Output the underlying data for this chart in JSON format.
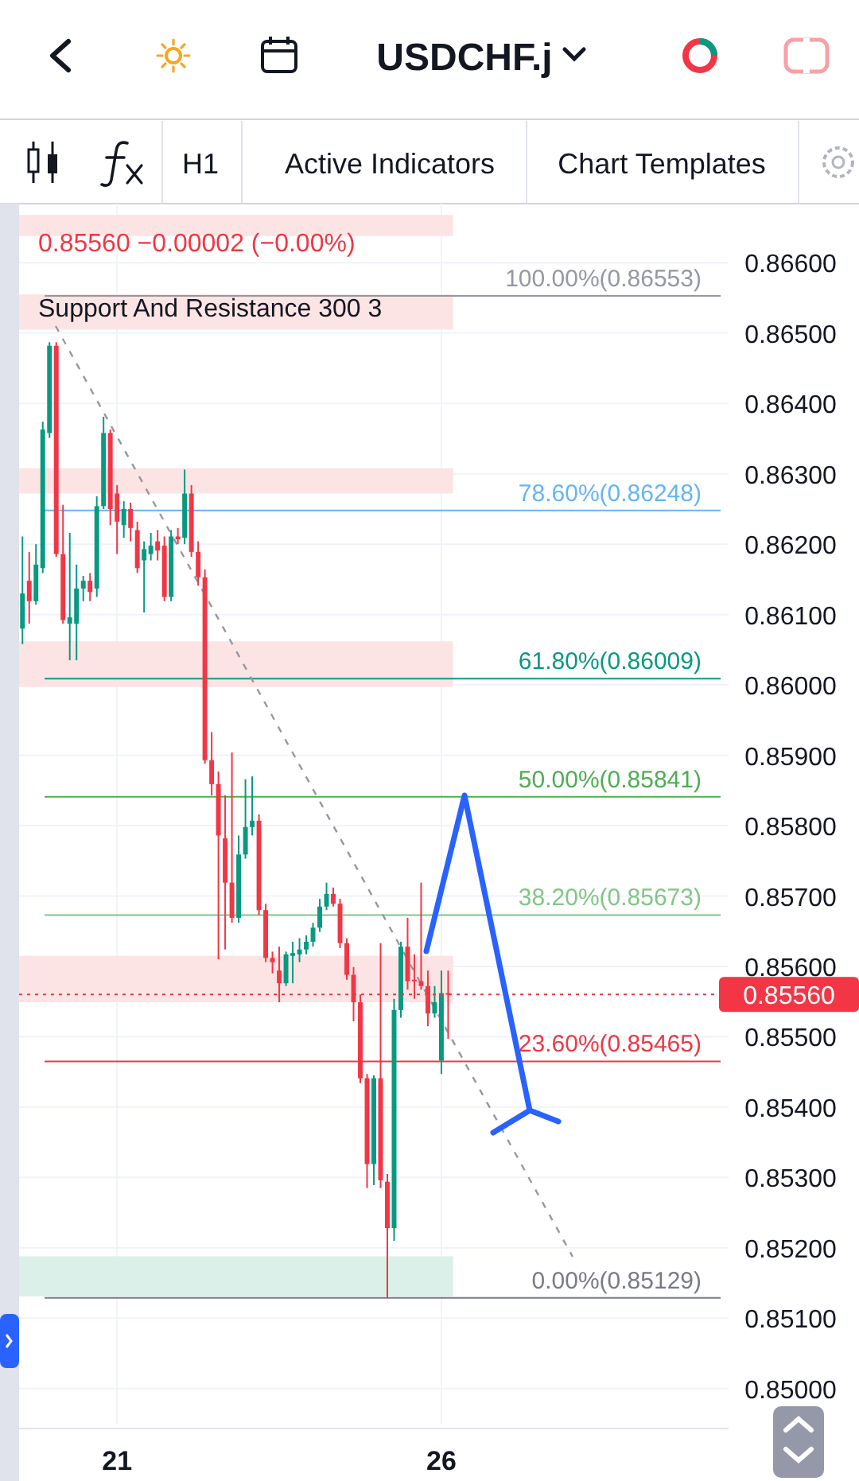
{
  "chart_data": {
    "type": "candlestick",
    "title": "USDCHF.j",
    "annotations": [
      "H1",
      "Active Indicators",
      "Chart Templates",
      "0.85560  −0.00002 (−0.00%)",
      "Support And Resistance 300 3"
    ],
    "categories": [
      null,
      null,
      null,
      null,
      null,
      null,
      null,
      null,
      null,
      null,
      null,
      null,
      null,
      null,
      "21",
      null,
      null,
      null,
      null,
      null,
      null,
      null,
      null,
      null,
      null,
      null,
      null,
      null,
      null,
      null,
      null,
      null,
      null,
      null,
      null,
      null,
      null,
      null,
      null,
      null,
      null,
      null,
      null,
      null,
      null,
      null,
      null,
      null,
      null,
      null,
      null,
      null,
      null,
      null,
      null,
      null,
      null,
      null,
      null,
      null,
      null,
      null,
      "26",
      null,
      null,
      null,
      null,
      null,
      null,
      null,
      null,
      null,
      null,
      null,
      null,
      null,
      null,
      null,
      null,
      null,
      null,
      null,
      null,
      null,
      null,
      null,
      null,
      null,
      null,
      null,
      null,
      null,
      null,
      null,
      null,
      null,
      null,
      null,
      null,
      null,
      null,
      null,
      null,
      null,
      null
    ],
    "ohlc": [
      [
        0.8608,
        0.86211,
        0.86058,
        0.8613
      ],
      [
        0.86148,
        0.86189,
        0.86087,
        0.86119
      ],
      [
        0.86119,
        0.862,
        0.86114,
        0.86171
      ],
      [
        0.86166,
        0.86374,
        0.86159,
        0.86363
      ],
      [
        0.86358,
        0.86487,
        0.86351,
        0.86482
      ],
      [
        0.86482,
        0.86487,
        0.86182,
        0.86186
      ],
      [
        0.86186,
        0.86256,
        0.86087,
        0.86092
      ],
      [
        0.86087,
        0.86216,
        0.86035,
        0.86096
      ],
      [
        0.86087,
        0.86171,
        0.86035,
        0.86137
      ],
      [
        0.86137,
        0.86155,
        0.86119,
        0.86148
      ],
      [
        0.86148,
        0.86159,
        0.86119,
        0.86132
      ],
      [
        0.86137,
        0.86268,
        0.86125,
        0.86254
      ],
      [
        0.86254,
        0.86381,
        0.8625,
        0.86358
      ],
      [
        0.86358,
        0.86363,
        0.86227,
        0.8625
      ],
      [
        0.86272,
        0.86284,
        0.86186,
        0.86232
      ],
      [
        0.86227,
        0.86261,
        0.86209,
        0.8625
      ],
      [
        0.8625,
        0.86259,
        0.86204,
        0.86223
      ],
      [
        0.8622,
        0.86232,
        0.86159,
        0.86166
      ],
      [
        0.86177,
        0.86204,
        0.86103,
        0.86193
      ],
      [
        0.86186,
        0.86216,
        0.86177,
        0.86198
      ],
      [
        0.86204,
        0.8622,
        0.86177,
        0.86191
      ],
      [
        0.86198,
        0.86211,
        0.86119,
        0.86125
      ],
      [
        0.86125,
        0.8622,
        0.86119,
        0.86211
      ],
      [
        0.86211,
        0.86223,
        0.862,
        0.86207
      ],
      [
        0.86209,
        0.86306,
        0.862,
        0.86272
      ],
      [
        0.86272,
        0.86284,
        0.86182,
        0.86189
      ],
      [
        0.86189,
        0.86204,
        0.86141,
        0.86153
      ],
      [
        0.86153,
        0.86164,
        0.85888,
        0.85893
      ],
      [
        0.85893,
        0.85933,
        0.85843,
        0.85859
      ],
      [
        0.85859,
        0.85877,
        0.8561,
        0.85786
      ],
      [
        0.85782,
        0.85843,
        0.85624,
        0.85719
      ],
      [
        0.85719,
        0.85904,
        0.85662,
        0.85669
      ],
      [
        0.85669,
        0.85786,
        0.85662,
        0.85759
      ],
      [
        0.85759,
        0.85866,
        0.85753,
        0.85798
      ],
      [
        0.85798,
        0.8587,
        0.85786,
        0.85807
      ],
      [
        0.85807,
        0.85816,
        0.85673,
        0.8568
      ],
      [
        0.8568,
        0.85689,
        0.85606,
        0.85612
      ],
      [
        0.85612,
        0.85621,
        0.8559,
        0.85606
      ],
      [
        0.85594,
        0.85628,
        0.85549,
        0.85576
      ],
      [
        0.85576,
        0.85621,
        0.85572,
        0.85617
      ],
      [
        0.85615,
        0.85635,
        0.85576,
        0.85619
      ],
      [
        0.85617,
        0.8564,
        0.85606,
        0.85624
      ],
      [
        0.85624,
        0.85644,
        0.85617,
        0.85635
      ],
      [
        0.85635,
        0.85662,
        0.85628,
        0.85655
      ],
      [
        0.85655,
        0.85696,
        0.85649,
        0.85685
      ],
      [
        0.85685,
        0.85719,
        0.8568,
        0.85703
      ],
      [
        0.85703,
        0.85712,
        0.85685,
        0.85689
      ],
      [
        0.85689,
        0.85696,
        0.85626,
        0.85633
      ],
      [
        0.85633,
        0.8564,
        0.85581,
        0.85588
      ],
      [
        0.85588,
        0.85599,
        0.85522,
        0.85549
      ],
      [
        0.85549,
        0.8556,
        0.85434,
        0.85441
      ],
      [
        0.85441,
        0.85447,
        0.85285,
        0.85319
      ],
      [
        0.85319,
        0.85445,
        0.85289,
        0.85441
      ],
      [
        0.85441,
        0.85633,
        0.85285,
        0.85296
      ],
      [
        0.85294,
        0.85305,
        0.85129,
        0.85228
      ],
      [
        0.85228,
        0.85554,
        0.8521,
        0.85538
      ],
      [
        0.85538,
        0.85635,
        0.85527,
        0.85628
      ],
      [
        0.85628,
        0.85669,
        0.85567,
        0.85579
      ],
      [
        0.85581,
        0.85617,
        0.85554,
        0.85579
      ],
      [
        0.85579,
        0.85719,
        0.85567,
        0.85572
      ],
      [
        0.85572,
        0.85594,
        0.85515,
        0.85533
      ],
      [
        0.85533,
        0.85572,
        0.85527,
        0.85549
      ],
      [
        0.85466,
        0.85594,
        0.85447,
        0.85562
      ],
      [
        0.85562,
        0.85594,
        0.85497,
        0.8556
      ],
      null,
      null,
      null,
      null,
      null,
      null,
      null,
      null,
      null,
      null,
      null,
      null,
      null,
      null,
      null,
      null,
      null,
      null,
      null,
      null,
      null,
      null,
      null,
      null,
      null,
      null,
      null,
      null,
      null,
      null,
      null,
      null,
      null,
      null,
      null,
      null,
      null,
      null,
      null,
      null,
      null
    ],
    "ylim": [
      0.8495,
      0.86684
    ],
    "yticks": [
      {
        "value": 0.85,
        "label": "0.85000"
      },
      {
        "value": 0.851,
        "label": "0.85100"
      },
      {
        "value": 0.852,
        "label": "0.85200"
      },
      {
        "value": 0.853,
        "label": "0.85300"
      },
      {
        "value": 0.854,
        "label": "0.85400"
      },
      {
        "value": 0.855,
        "label": "0.85500"
      },
      {
        "value": 0.856,
        "label": "0.85600"
      },
      {
        "value": 0.857,
        "label": "0.85700"
      },
      {
        "value": 0.858,
        "label": "0.85800"
      },
      {
        "value": 0.859,
        "label": "0.85900"
      },
      {
        "value": 0.86,
        "label": "0.86000"
      },
      {
        "value": 0.861,
        "label": "0.86100"
      },
      {
        "value": 0.862,
        "label": "0.86200"
      },
      {
        "value": 0.863,
        "label": "0.86300"
      },
      {
        "value": 0.864,
        "label": "0.86400"
      },
      {
        "value": 0.865,
        "label": "0.86500"
      },
      {
        "value": 0.866,
        "label": "0.86600"
      }
    ],
    "grid": true,
    "ref_lines": [
      {
        "axis": "y",
        "value": 0.86553,
        "label": "100.00%(0.86553)",
        "color": "#9598a1"
      },
      {
        "axis": "y",
        "value": 0.86248,
        "label": "78.60%(0.86248)",
        "color": "#64b5f6"
      },
      {
        "axis": "y",
        "value": 0.86009,
        "label": "61.80%(0.86009)",
        "color": "#089981"
      },
      {
        "axis": "y",
        "value": 0.85841,
        "label": "50.00%(0.85841)",
        "color": "#4caf50"
      },
      {
        "axis": "y",
        "value": 0.85673,
        "label": "38.20%(0.85673)",
        "color": "#81c784"
      },
      {
        "axis": "y",
        "value": 0.85465,
        "label": "23.60%(0.85465)",
        "color": "#f23645"
      },
      {
        "axis": "y",
        "value": 0.85129,
        "label": "0.00%(0.85129)",
        "color": "#787b86"
      },
      {
        "axis": "y",
        "value": 0.8556,
        "label": "0.85560",
        "color": "#f23645",
        "line_style": "dotted"
      }
    ],
    "bands": [
      {
        "axis": "y",
        "from": 0.86638,
        "to": 0.86668,
        "color": "#fde4e4"
      },
      {
        "axis": "y",
        "from": 0.86505,
        "to": 0.86555,
        "color": "#fde4e4"
      },
      {
        "axis": "y",
        "from": 0.86272,
        "to": 0.86308,
        "color": "#fde4e4"
      },
      {
        "axis": "y",
        "from": 0.85997,
        "to": 0.86062,
        "color": "#fde4e4"
      },
      {
        "axis": "y",
        "from": 0.85549,
        "to": 0.85615,
        "color": "#fde4e4"
      },
      {
        "axis": "y",
        "from": 0.85131,
        "to": 0.85188,
        "color": "#dcf0ea"
      }
    ]
  }
}
